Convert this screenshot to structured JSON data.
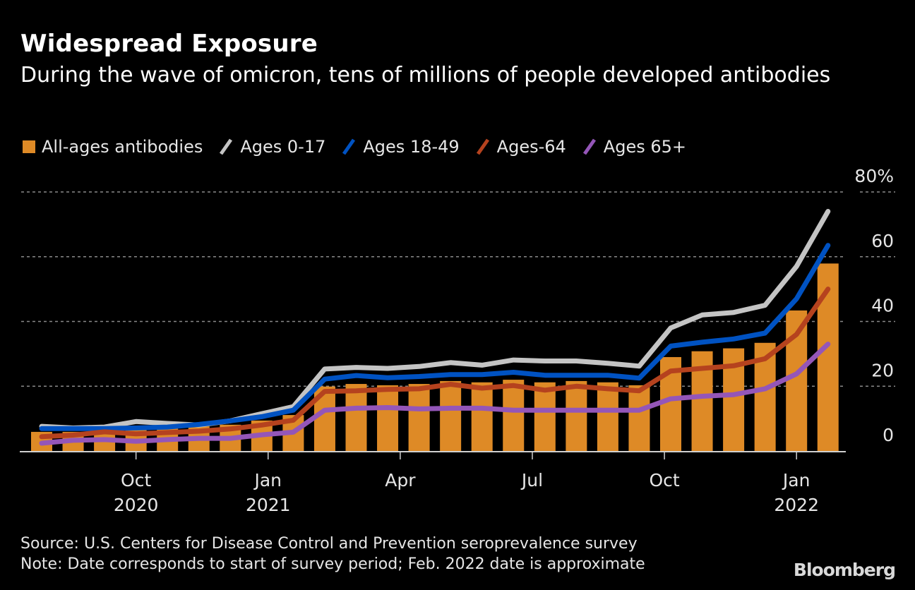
{
  "title": "Widespread Exposure",
  "subtitle": "During the wave of omicron, tens of millions of people developed antibodies",
  "legend": [
    {
      "label": "All-ages antibodies",
      "kind": "box",
      "color": "#de8a26"
    },
    {
      "label": "Ages 0-17",
      "kind": "line",
      "color": "#c4c4c4"
    },
    {
      "label": "Ages 18-49",
      "kind": "line",
      "color": "#0052c2"
    },
    {
      "label": "Ages-64",
      "kind": "line",
      "color": "#b5421e"
    },
    {
      "label": "Ages 65+",
      "kind": "line",
      "color": "#9456b8"
    }
  ],
  "footer": {
    "source": "Source: U.S. Centers for Disease Control and Prevention seroprevalence survey",
    "note": "Note: Date corresponds to start of survey period; Feb. 2022 date is approximate"
  },
  "logo": "Bloomberg",
  "chart_data": {
    "type": "bar",
    "title": "Widespread Exposure",
    "subtitle": "During the wave of omicron, tens of millions of people developed antibodies",
    "xlabel": "",
    "ylabel": "",
    "ylim": [
      0,
      80
    ],
    "y_ticks": [
      0,
      20,
      40,
      60,
      80
    ],
    "y_tick_labels": [
      "0",
      "20",
      "40",
      "60",
      "80%"
    ],
    "y_axis_side": "right",
    "grid": true,
    "legend_position": "top-left",
    "x_ticks": [
      {
        "index": 3,
        "label": "Oct",
        "year": "2020"
      },
      {
        "index": 7.2,
        "label": "Jan",
        "year": "2021"
      },
      {
        "index": 11.4,
        "label": "Apr",
        "year": ""
      },
      {
        "index": 15.6,
        "label": "Jul",
        "year": ""
      },
      {
        "index": 19.8,
        "label": "Oct",
        "year": ""
      },
      {
        "index": 24,
        "label": "Jan",
        "year": "2022"
      }
    ],
    "period_count": 26,
    "series": [
      {
        "name": "All-ages antibodies",
        "type": "bar",
        "color": "#de8a26",
        "values": [
          5.9,
          5.9,
          6.0,
          6.8,
          7.0,
          7.6,
          8.1,
          9.4,
          11.1,
          19.9,
          20.7,
          20.3,
          20.7,
          21.6,
          21.2,
          22.0,
          21.2,
          21.6,
          21.2,
          20.3,
          29.0,
          30.8,
          31.7,
          33.4,
          43.4,
          57.9
        ]
      },
      {
        "name": "Ages 0-17",
        "type": "line",
        "color": "#c4c4c4",
        "values": [
          7.6,
          7.1,
          7.4,
          9.1,
          8.5,
          8.0,
          9.3,
          11.5,
          13.7,
          25.3,
          25.8,
          25.5,
          26.1,
          27.3,
          26.5,
          28.1,
          27.8,
          27.8,
          27.1,
          26.2,
          38.0,
          42.0,
          42.8,
          45.0,
          57.0,
          74.0
        ]
      },
      {
        "name": "Ages 18-49",
        "type": "line",
        "color": "#0052c2",
        "values": [
          6.9,
          6.9,
          6.9,
          7.1,
          7.4,
          8.2,
          9.3,
          10.6,
          12.6,
          22.2,
          23.3,
          22.6,
          23.0,
          23.6,
          23.6,
          24.3,
          23.4,
          23.4,
          23.4,
          22.5,
          32.4,
          33.6,
          34.6,
          36.4,
          47.0,
          63.5
        ]
      },
      {
        "name": "Ages-64",
        "type": "line",
        "color": "#b5421e",
        "values": [
          4.4,
          4.9,
          5.9,
          5.3,
          5.7,
          6.1,
          6.8,
          8.0,
          9.5,
          18.4,
          18.6,
          19.0,
          19.2,
          20.6,
          19.4,
          20.2,
          18.8,
          20.0,
          19.2,
          18.6,
          24.7,
          25.5,
          26.3,
          28.5,
          36.0,
          50.0
        ]
      },
      {
        "name": "Ages 65+",
        "type": "line",
        "color": "#9456b8",
        "values": [
          2.4,
          3.3,
          3.5,
          3.0,
          3.5,
          3.9,
          3.9,
          5.0,
          5.8,
          12.6,
          13.2,
          13.4,
          13.0,
          13.2,
          13.2,
          12.6,
          12.6,
          12.6,
          12.6,
          12.6,
          16.1,
          16.9,
          17.4,
          19.2,
          23.8,
          33.0
        ]
      }
    ]
  }
}
